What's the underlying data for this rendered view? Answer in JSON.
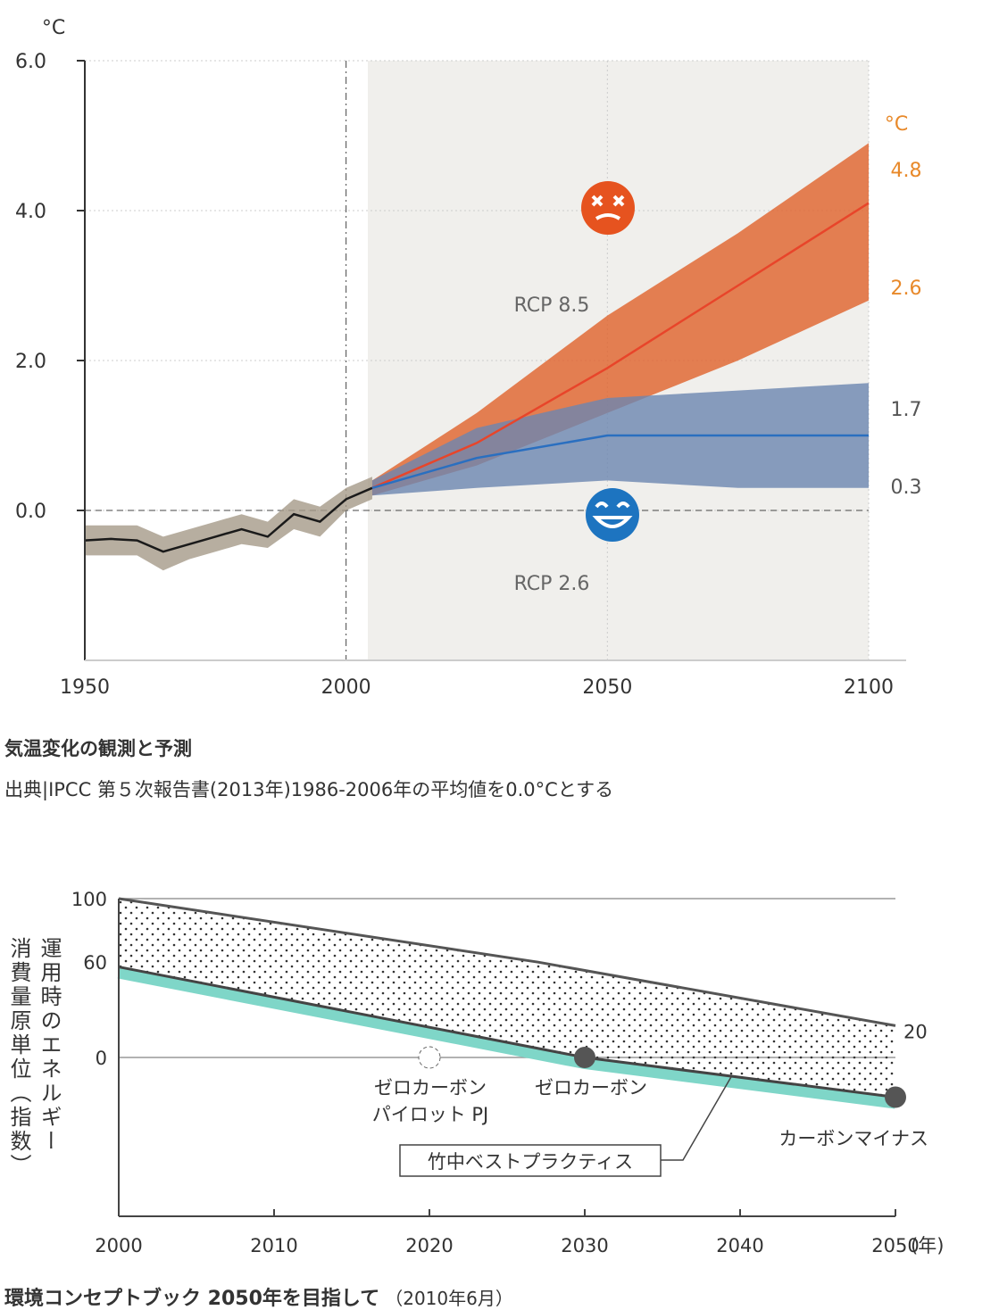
{
  "chart_data": [
    {
      "type": "line",
      "unit": "°C",
      "xlim": [
        1950,
        2100
      ],
      "ylim": [
        -2,
        6
      ],
      "xticks": [
        1950,
        2000,
        2050,
        2100
      ],
      "yticks": [
        {
          "value": 0,
          "label": "0.0"
        },
        {
          "value": 2,
          "label": "2.0"
        },
        {
          "value": 4,
          "label": "4.0"
        },
        {
          "value": 6,
          "label": "6.0"
        }
      ],
      "grid": true,
      "observed": {
        "color": "#1a1a1a",
        "band_color": "#a59a88",
        "x": [
          1950,
          1955,
          1960,
          1965,
          1970,
          1975,
          1980,
          1985,
          1990,
          1995,
          2000,
          2005
        ],
        "values": [
          -0.4,
          -0.38,
          -0.4,
          -0.55,
          -0.45,
          -0.35,
          -0.25,
          -0.35,
          -0.05,
          -0.15,
          0.15,
          0.3
        ],
        "lower": [
          -0.6,
          -0.6,
          -0.6,
          -0.8,
          -0.65,
          -0.55,
          -0.45,
          -0.5,
          -0.25,
          -0.35,
          0.0,
          0.15
        ],
        "upper": [
          -0.2,
          -0.2,
          -0.2,
          -0.35,
          -0.25,
          -0.15,
          -0.05,
          -0.15,
          0.15,
          0.05,
          0.3,
          0.45
        ]
      },
      "series": [
        {
          "name": "RCP 8.5",
          "color": "#e8452a",
          "band_color": "#e0622a",
          "x": [
            2005,
            2025,
            2050,
            2075,
            2100
          ],
          "values": [
            0.3,
            0.9,
            1.9,
            3.0,
            4.1
          ],
          "lower": [
            0.2,
            0.6,
            1.3,
            2.0,
            2.8
          ],
          "upper": [
            0.4,
            1.3,
            2.6,
            3.7,
            4.9
          ],
          "range": [
            2.6,
            4.8
          ],
          "range_color": "#e8892a"
        },
        {
          "name": "RCP 2.6",
          "color": "#2a6fc0",
          "band_color": "#6b86b0",
          "x": [
            2005,
            2025,
            2050,
            2075,
            2100
          ],
          "values": [
            0.3,
            0.7,
            1.0,
            1.0,
            1.0
          ],
          "lower": [
            0.2,
            0.3,
            0.4,
            0.3,
            0.3
          ],
          "upper": [
            0.4,
            1.1,
            1.5,
            1.6,
            1.7
          ],
          "range": [
            0.3,
            1.7
          ],
          "range_color": "#555555"
        }
      ],
      "range_unit": "°C",
      "caption": "気温変化の観測と予測",
      "source": "出典|IPCC 第５次報告書(2013年)1986-2006年の平均値を0.0°Cとする"
    },
    {
      "type": "line",
      "ylabel": [
        "運用時のエネルギー",
        "消費量原単位（指数）"
      ],
      "xlim": [
        2000,
        2050
      ],
      "ylim": [
        -100,
        100
      ],
      "xticks": [
        2000,
        2010,
        2020,
        2030,
        2040,
        2050
      ],
      "x_unit": "(年)",
      "yticks": [
        0,
        60,
        100
      ],
      "series": [
        {
          "color": "#555555",
          "x": [
            2000,
            2027,
            2050
          ],
          "values": [
            100,
            60,
            20
          ]
        },
        {
          "name": "竹中ベストプラクティス",
          "color": "#444444",
          "band_color": "#7fd6c8",
          "x": [
            2000,
            2030,
            2050
          ],
          "values": [
            57,
            0,
            -25
          ]
        }
      ],
      "points": [
        {
          "x": 2020,
          "value": 0,
          "label": [
            "ゼロカーボン",
            "パイロット PJ"
          ],
          "hollow": true
        },
        {
          "x": 2030,
          "value": 0,
          "label": [
            "ゼロカーボン"
          ],
          "hollow": false
        },
        {
          "x": 2050,
          "value": -25,
          "label": [
            "カーボンマイナス"
          ],
          "hollow": false
        }
      ],
      "title": "環境コンセプトブック 2050年を目指して",
      "subtitle": "（2010年6月）"
    }
  ]
}
